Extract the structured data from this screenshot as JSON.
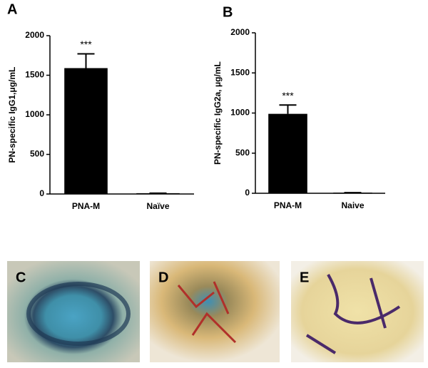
{
  "chart_data": [
    {
      "type": "bar",
      "panel_label": "A",
      "ylabel": "PN-specific IgG1,μg/mL",
      "categories": [
        "PNA-M",
        "Naïve"
      ],
      "values": [
        1590,
        10
      ],
      "errors": [
        180,
        0
      ],
      "value_annotations": [
        "***",
        null
      ],
      "color": "#000000",
      "ylim": [
        0,
        2000
      ],
      "yticks": [
        0,
        500,
        1000,
        1500,
        2000
      ]
    },
    {
      "type": "bar",
      "panel_label": "B",
      "ylabel": "PN-specific IgG2a, μg/mL",
      "categories": [
        "PNA-M",
        "Naive"
      ],
      "values": [
        990,
        8
      ],
      "errors": [
        110,
        0
      ],
      "value_annotations": [
        "***",
        null
      ],
      "color": "#000000",
      "ylim": [
        0,
        2000
      ],
      "yticks": [
        0,
        500,
        1000,
        1500,
        2000
      ]
    }
  ],
  "panels": [
    {
      "label": "C"
    },
    {
      "label": "D"
    },
    {
      "label": "E"
    }
  ]
}
